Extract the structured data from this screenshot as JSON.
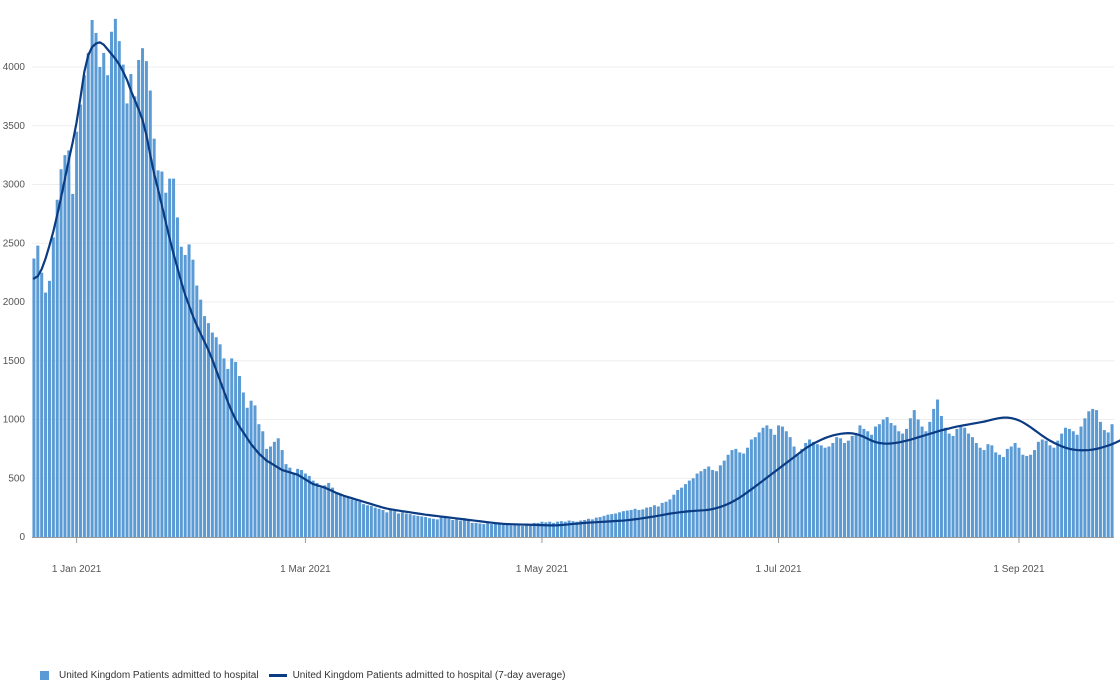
{
  "colors": {
    "bar": "#5b9bd5",
    "line": "#0b3b82",
    "grid": "#eeeeee",
    "axis": "#999999"
  },
  "legend": {
    "bar_label": "United Kingdom Patients admitted to hospital",
    "line_label": "United Kingdom Patients admitted to hospital (7-day average)"
  },
  "chart_data": {
    "type": "bar",
    "series": [
      {
        "name": "United Kingdom Patients admitted to hospital",
        "type": "bar"
      },
      {
        "name": "United Kingdom Patients admitted to hospital (7-day average)",
        "type": "line"
      }
    ],
    "ylim": [
      0,
      4400
    ],
    "yticks": [
      0,
      500,
      1000,
      1500,
      2000,
      2500,
      3000,
      3500,
      4000
    ],
    "xticks": [
      {
        "date": "2021-01-01",
        "label": "1 Jan 2021"
      },
      {
        "date": "2021-03-01",
        "label": "1 Mar 2021"
      },
      {
        "date": "2021-05-01",
        "label": "1 May 2021"
      },
      {
        "date": "2021-07-01",
        "label": "1 Jul 2021"
      },
      {
        "date": "2021-09-01",
        "label": "1 Sep 2021"
      }
    ],
    "grid": "horizontal",
    "legend_position": "bottom-left",
    "start_date": "2020-12-21",
    "daily_values": [
      2370,
      2480,
      2250,
      2080,
      2180,
      2550,
      2870,
      3130,
      3250,
      3290,
      2920,
      3450,
      3680,
      3930,
      4120,
      4400,
      4290,
      4000,
      4120,
      3930,
      4300,
      4410,
      4220,
      4020,
      3690,
      3940,
      3750,
      4060,
      4160,
      4050,
      3800,
      3390,
      3120,
      3110,
      2930,
      3050,
      3050,
      2720,
      2470,
      2400,
      2490,
      2360,
      2140,
      2020,
      1880,
      1820,
      1740,
      1700,
      1640,
      1520,
      1430,
      1520,
      1490,
      1370,
      1230,
      1100,
      1160,
      1120,
      960,
      900,
      750,
      770,
      810,
      840,
      740,
      620,
      590,
      540,
      580,
      570,
      540,
      520,
      480,
      460,
      420,
      440,
      460,
      420,
      380,
      370,
      350,
      340,
      320,
      310,
      300,
      280,
      270,
      265,
      250,
      240,
      230,
      210,
      230,
      220,
      200,
      210,
      200,
      195,
      185,
      180,
      175,
      170,
      160,
      155,
      150,
      170,
      165,
      155,
      145,
      150,
      140,
      160,
      140,
      120,
      120,
      115,
      110,
      120,
      110,
      115,
      110,
      105,
      110,
      100,
      105,
      105,
      95,
      100,
      110,
      120,
      120,
      130,
      125,
      130,
      120,
      130,
      135,
      130,
      140,
      135,
      130,
      140,
      145,
      155,
      150,
      165,
      170,
      180,
      190,
      195,
      200,
      210,
      220,
      225,
      230,
      240,
      230,
      235,
      250,
      255,
      270,
      260,
      290,
      300,
      320,
      360,
      400,
      420,
      450,
      480,
      500,
      540,
      560,
      580,
      600,
      570,
      560,
      610,
      650,
      700,
      740,
      750,
      720,
      710,
      760,
      830,
      850,
      890,
      930,
      950,
      920,
      870,
      950,
      940,
      900,
      850,
      770,
      700,
      750,
      800,
      830,
      810,
      790,
      780,
      760,
      770,
      800,
      850,
      840,
      800,
      820,
      860,
      880,
      950,
      920,
      900,
      870,
      940,
      960,
      1000,
      1020,
      970,
      950,
      900,
      880,
      920,
      1010,
      1080,
      1000,
      940,
      900,
      980,
      1090,
      1170,
      1030,
      930,
      880,
      860,
      920,
      950,
      930,
      880,
      850,
      800,
      760,
      740,
      790,
      780,
      720,
      700,
      680,
      750,
      770,
      800,
      760,
      700,
      690,
      700,
      740,
      810,
      830,
      820,
      780,
      760,
      820,
      880,
      930,
      920,
      900,
      870,
      940,
      1010,
      1070,
      1090,
      1080,
      980,
      910,
      890,
      960
    ],
    "avg_values": [
      2200,
      2220,
      2280,
      2370,
      2480,
      2600,
      2740,
      2890,
      3050,
      3210,
      3360,
      3530,
      3740,
      3960,
      4100,
      4170,
      4200,
      4210,
      4190,
      4150,
      4110,
      4070,
      4020,
      3960,
      3890,
      3800,
      3720,
      3640,
      3550,
      3420,
      3250,
      3090,
      2960,
      2820,
      2680,
      2540,
      2410,
      2290,
      2170,
      2060,
      1970,
      1880,
      1800,
      1730,
      1660,
      1590,
      1510,
      1420,
      1330,
      1240,
      1150,
      1070,
      1000,
      940,
      890,
      840,
      790,
      750,
      710,
      680,
      650,
      630,
      610,
      590,
      570,
      560,
      550,
      540,
      530,
      510,
      490,
      470,
      450,
      440,
      430,
      420,
      405,
      390,
      375,
      362,
      350,
      340,
      330,
      320,
      310,
      300,
      290,
      280,
      270,
      260,
      250,
      242,
      236,
      230,
      225,
      220,
      215,
      210,
      205,
      200,
      195,
      190,
      186,
      182,
      178,
      174,
      170,
      166,
      162,
      158,
      154,
      150,
      146,
      142,
      138,
      134,
      130,
      126,
      122,
      118,
      115,
      112,
      110,
      109,
      108,
      107,
      106,
      105,
      104,
      103,
      102,
      101,
      100,
      99,
      99,
      100,
      102,
      105,
      108,
      111,
      114,
      117,
      120,
      122,
      124,
      126,
      128,
      130,
      132,
      134,
      136,
      138,
      140,
      143,
      147,
      151,
      155,
      160,
      165,
      170,
      175,
      181,
      187,
      193,
      199,
      204,
      208,
      212,
      216,
      219,
      222,
      224,
      226,
      228,
      232,
      238,
      246,
      256,
      268,
      282,
      298,
      316,
      336,
      358,
      382,
      406,
      430,
      455,
      480,
      505,
      530,
      555,
      580,
      605,
      630,
      655,
      680,
      705,
      730,
      755,
      775,
      795,
      812,
      828,
      842,
      854,
      864,
      872,
      878,
      882,
      884,
      882,
      876,
      866,
      852,
      836,
      820,
      808,
      800,
      796,
      794,
      796,
      800,
      805,
      812,
      820,
      828,
      838,
      848,
      858,
      868,
      878,
      888,
      898,
      908,
      916,
      924,
      932,
      940,
      946,
      952,
      958,
      964,
      970,
      976,
      982,
      990,
      998,
      1006,
      1012,
      1016,
      1016,
      1012,
      1004,
      992,
      976,
      956,
      934,
      910,
      886,
      862,
      840,
      820,
      802,
      786,
      772,
      760,
      750,
      744,
      740,
      738,
      738,
      740,
      744,
      750,
      758,
      768,
      778,
      790,
      804,
      820,
      838,
      858,
      880,
      904,
      930,
      956,
      980,
      998,
      1006,
      1006,
      1002,
      998
    ]
  }
}
